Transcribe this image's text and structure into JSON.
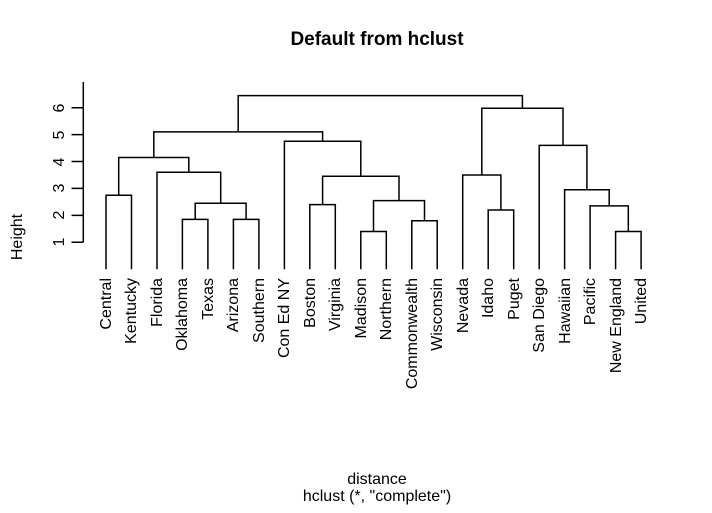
{
  "chart_data": {
    "type": "dendrogram",
    "title": "Default from hclust",
    "ylabel": "Height",
    "xlabel": "distance",
    "subcaption": "hclust (*, \"complete\")",
    "yticks": [
      1,
      2,
      3,
      4,
      5,
      6
    ],
    "ylim": [
      0,
      7
    ],
    "grid": false,
    "line_color": "#000000",
    "background_color": "#ffffff",
    "leaves": [
      "Central",
      "Kentucky",
      "Florida",
      "Oklahoma",
      "Texas",
      "Arizona",
      "Southern",
      "Con Ed NY",
      "Boston",
      "Virginia",
      "Madison",
      "Northern",
      "Commonwealth",
      "Wisconsin",
      "Nevada",
      "Idaho",
      "Puget",
      "San Diego",
      "Hawaiian",
      "Pacific",
      "New England",
      "United"
    ],
    "merges": [
      {
        "a": "Central",
        "b": "Kentucky",
        "h": 2.75
      },
      {
        "a": "Oklahoma",
        "b": "Texas",
        "h": 1.85
      },
      {
        "a": "Arizona",
        "b": "Southern",
        "h": 1.85
      },
      {
        "a": 1,
        "b": 2,
        "h": 2.45
      },
      {
        "a": "Florida",
        "b": 3,
        "h": 3.6
      },
      {
        "a": 0,
        "b": 4,
        "h": 4.15
      },
      {
        "a": "Boston",
        "b": "Virginia",
        "h": 2.4
      },
      {
        "a": "Madison",
        "b": "Northern",
        "h": 1.4
      },
      {
        "a": "Commonwealth",
        "b": "Wisconsin",
        "h": 1.8
      },
      {
        "a": 7,
        "b": 8,
        "h": 2.55
      },
      {
        "a": 6,
        "b": 9,
        "h": 3.45
      },
      {
        "a": "Con Ed NY",
        "b": 10,
        "h": 4.75
      },
      {
        "a": 5,
        "b": 11,
        "h": 5.1
      },
      {
        "a": "Idaho",
        "b": "Puget",
        "h": 2.2
      },
      {
        "a": "Nevada",
        "b": 13,
        "h": 3.5
      },
      {
        "a": "New England",
        "b": "United",
        "h": 1.4
      },
      {
        "a": "Pacific",
        "b": 15,
        "h": 2.35
      },
      {
        "a": "Hawaiian",
        "b": 16,
        "h": 2.95
      },
      {
        "a": "San Diego",
        "b": 17,
        "h": 4.6
      },
      {
        "a": 14,
        "b": 18,
        "h": 5.98
      },
      {
        "a": 12,
        "b": 19,
        "h": 6.45
      }
    ]
  }
}
